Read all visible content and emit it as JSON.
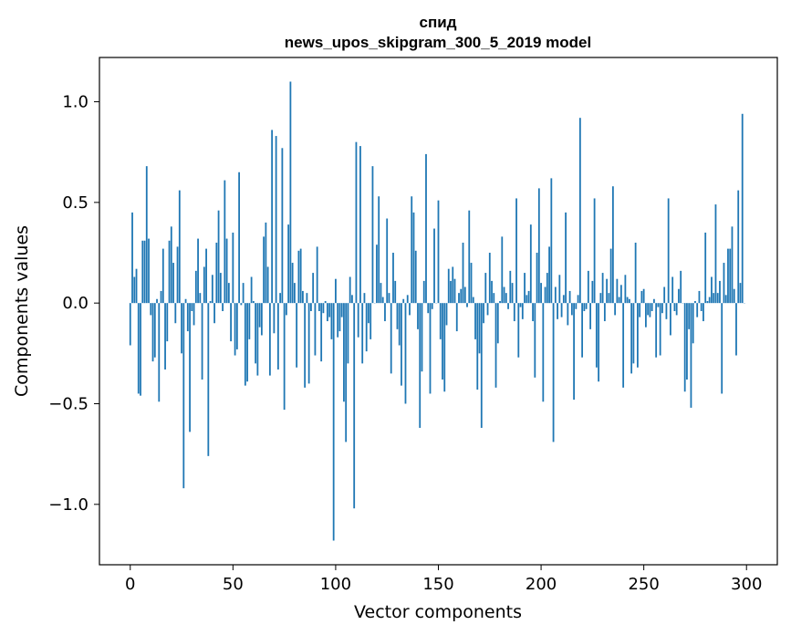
{
  "chart_data": {
    "type": "bar",
    "title": "спид",
    "subtitle": "news_upos_skipgram_300_5_2019 model",
    "xlabel": "Vector components",
    "ylabel": "Components values",
    "xlim": [
      -15,
      315
    ],
    "ylim": [
      -1.3,
      1.22
    ],
    "x_ticks": [
      0,
      50,
      100,
      150,
      200,
      250,
      300
    ],
    "x_tick_labels": [
      "0",
      "50",
      "100",
      "150",
      "200",
      "250",
      "300"
    ],
    "y_ticks": [
      -1.0,
      -0.5,
      0.0,
      0.5,
      1.0
    ],
    "y_tick_labels": [
      "−1.0",
      "−0.5",
      "0.0",
      "0.5",
      "1.0"
    ],
    "grid": false,
    "bar_color": "#1f77b4",
    "x_start": 0,
    "values": [
      -0.21,
      0.45,
      0.13,
      0.17,
      -0.45,
      -0.46,
      0.31,
      0.31,
      0.68,
      0.32,
      -0.06,
      -0.29,
      -0.27,
      0.02,
      -0.49,
      0.06,
      0.27,
      -0.33,
      -0.19,
      0.31,
      0.38,
      0.2,
      -0.1,
      0.28,
      0.56,
      -0.25,
      -0.92,
      0.02,
      -0.14,
      -0.64,
      -0.04,
      -0.11,
      0.16,
      0.32,
      0.05,
      -0.38,
      0.18,
      0.27,
      -0.76,
      0.01,
      0.14,
      -0.1,
      0.3,
      0.46,
      0.15,
      -0.04,
      0.61,
      0.32,
      0.1,
      -0.19,
      0.35,
      -0.26,
      -0.23,
      0.65,
      -0.01,
      0.1,
      -0.41,
      -0.39,
      -0.18,
      0.13,
      0.01,
      -0.3,
      -0.36,
      -0.12,
      -0.16,
      0.33,
      0.4,
      0.18,
      -0.36,
      0.86,
      -0.15,
      0.83,
      -0.33,
      0.05,
      0.77,
      -0.53,
      -0.06,
      0.39,
      1.1,
      0.2,
      0.1,
      -0.32,
      0.26,
      0.27,
      0.06,
      -0.42,
      0.05,
      -0.4,
      -0.04,
      0.15,
      -0.26,
      0.28,
      -0.04,
      -0.29,
      -0.05,
      0.01,
      -0.09,
      -0.07,
      -0.18,
      -1.18,
      0.12,
      -0.17,
      -0.14,
      -0.07,
      -0.49,
      -0.69,
      -0.3,
      0.13,
      0.04,
      -1.02,
      0.8,
      -0.17,
      0.78,
      -0.3,
      0.05,
      -0.24,
      -0.1,
      -0.18,
      0.68,
      0.0,
      0.29,
      0.53,
      0.1,
      0.03,
      -0.09,
      0.42,
      0.05,
      -0.35,
      0.25,
      0.11,
      -0.13,
      -0.21,
      -0.41,
      0.02,
      -0.5,
      0.04,
      -0.06,
      0.53,
      0.45,
      0.26,
      -0.13,
      -0.62,
      -0.34,
      0.11,
      0.74,
      -0.05,
      -0.45,
      -0.03,
      0.37,
      0.0,
      0.51,
      -0.18,
      -0.38,
      -0.44,
      -0.11,
      0.17,
      0.11,
      0.18,
      0.12,
      -0.14,
      0.05,
      0.07,
      0.3,
      0.08,
      -0.02,
      0.46,
      0.2,
      0.03,
      -0.18,
      -0.43,
      -0.25,
      -0.62,
      -0.1,
      0.15,
      -0.06,
      0.25,
      0.11,
      0.05,
      -0.42,
      -0.2,
      0.01,
      0.33,
      0.08,
      0.05,
      -0.03,
      0.16,
      0.1,
      -0.09,
      0.52,
      -0.27,
      -0.02,
      -0.08,
      0.15,
      0.04,
      0.06,
      0.39,
      -0.09,
      -0.37,
      0.25,
      0.57,
      0.1,
      -0.49,
      0.08,
      0.15,
      0.28,
      0.62,
      -0.69,
      0.08,
      -0.08,
      0.14,
      -0.07,
      0.04,
      0.45,
      -0.11,
      0.06,
      -0.06,
      -0.48,
      -0.03,
      0.04,
      0.92,
      -0.27,
      -0.04,
      -0.03,
      0.16,
      -0.13,
      0.11,
      0.52,
      -0.32,
      -0.39,
      0.05,
      0.15,
      -0.09,
      0.12,
      0.05,
      0.27,
      0.58,
      -0.06,
      0.12,
      0.03,
      0.09,
      -0.42,
      0.14,
      0.03,
      0.02,
      -0.35,
      -0.3,
      0.3,
      -0.32,
      -0.07,
      0.06,
      0.07,
      -0.12,
      -0.06,
      -0.07,
      -0.04,
      0.02,
      -0.27,
      -0.02,
      -0.26,
      -0.05,
      0.08,
      -0.08,
      0.52,
      -0.16,
      0.13,
      -0.04,
      -0.06,
      0.07,
      0.16,
      0.0,
      -0.44,
      -0.38,
      -0.13,
      -0.52,
      -0.2,
      0.01,
      -0.07,
      0.06,
      -0.04,
      -0.09,
      0.35,
      0.01,
      0.03,
      0.13,
      0.05,
      0.49,
      0.05,
      0.11,
      -0.45,
      0.2,
      0.04,
      0.27,
      0.27,
      0.38,
      0.07,
      -0.26,
      0.56,
      0.1,
      0.94,
      0.0
    ]
  }
}
